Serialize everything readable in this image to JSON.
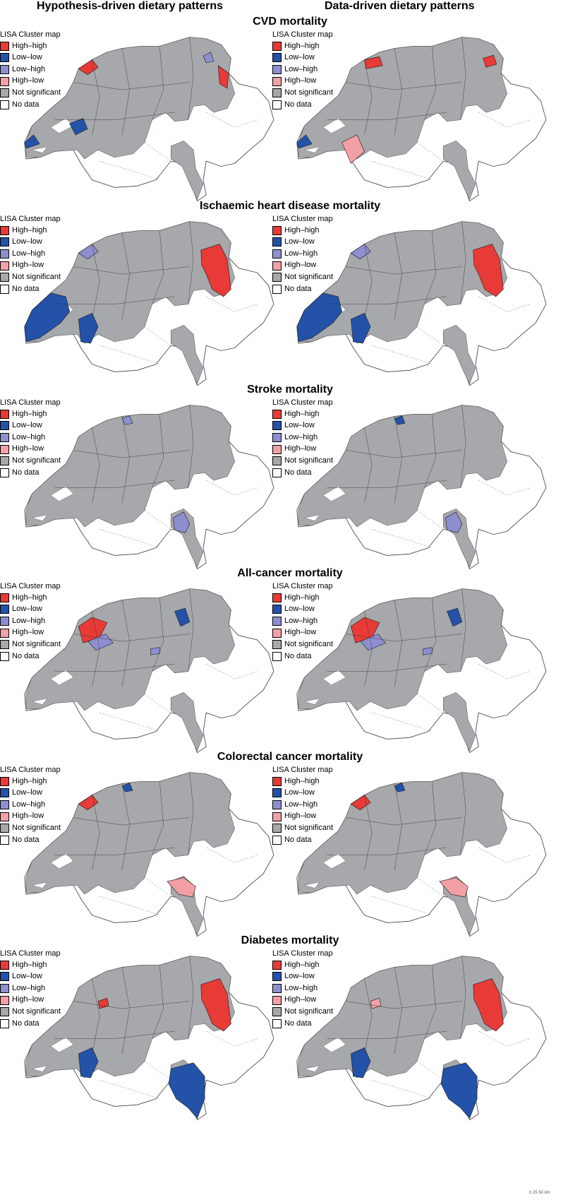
{
  "columns": [
    "Hypothesis-driven dietary patterns",
    "Data-driven dietary patterns"
  ],
  "legend": {
    "title": "LISA Cluster map",
    "items": [
      {
        "label": "High–high",
        "color": "#e83a37"
      },
      {
        "label": "Low–low",
        "color": "#2352a8"
      },
      {
        "label": "Low–high",
        "color": "#8d8fd0"
      },
      {
        "label": "High–low",
        "color": "#f2a0a6"
      },
      {
        "label": "Not significant",
        "color": "#a6a8ab"
      },
      {
        "label": "No data",
        "color": "#ffffff"
      }
    ]
  },
  "rows": [
    {
      "title": "CVD mortality",
      "maps": [
        {
          "hh": [
            "JU-north",
            "SG-east"
          ],
          "ll": [
            "VD-tip",
            "FR-south"
          ],
          "lh": [
            "TG-small"
          ],
          "hl": []
        },
        {
          "hh": [
            "BS-BL",
            "AR-AI"
          ],
          "ll": [
            "VD-tip"
          ],
          "lh": [],
          "hl": [
            "VS-west"
          ]
        }
      ]
    },
    {
      "title": "Ischaemic heart disease mortality",
      "maps": [
        {
          "hh": [
            "SG-region"
          ],
          "ll": [
            "VD-region",
            "VS-lower"
          ],
          "lh": [
            "JU-north"
          ],
          "hl": []
        },
        {
          "hh": [
            "SG-region"
          ],
          "ll": [
            "VD-region",
            "VS-lower"
          ],
          "lh": [
            "JU-north"
          ],
          "hl": []
        }
      ]
    },
    {
      "title": "Stroke mortality",
      "maps": [
        {
          "hh": [],
          "ll": [],
          "lh": [
            "BL-small",
            "TI-mid"
          ],
          "hl": []
        },
        {
          "hh": [],
          "ll": [
            "BL-small"
          ],
          "lh": [
            "TI-mid"
          ],
          "hl": []
        }
      ]
    },
    {
      "title": "All-cancer mortality",
      "maps": [
        {
          "hh": [
            "JU-BE"
          ],
          "ll": [
            "ZH-north"
          ],
          "lh": [
            "BE-lakes",
            "LU-small"
          ],
          "hl": []
        },
        {
          "hh": [
            "JU-BE"
          ],
          "ll": [
            "ZH-north"
          ],
          "lh": [
            "BE-lakes",
            "LU-small"
          ],
          "hl": []
        }
      ]
    },
    {
      "title": "Colorectal cancer mortality",
      "maps": [
        {
          "hh": [
            "JU-north"
          ],
          "ll": [
            "BL-small"
          ],
          "lh": [],
          "hl": [
            "TI-north"
          ]
        },
        {
          "hh": [
            "JU-north"
          ],
          "ll": [
            "BL-small"
          ],
          "lh": [],
          "hl": [
            "TI-north"
          ]
        }
      ]
    },
    {
      "title": "Diabetes mortality",
      "maps": [
        {
          "hh": [
            "SG-region",
            "BE-small"
          ],
          "ll": [
            "TI-south",
            "VS-lower"
          ],
          "lh": [],
          "hl": []
        },
        {
          "hh": [
            "SG-region"
          ],
          "ll": [
            "TI-south",
            "VS-lower"
          ],
          "lh": [],
          "hl": [
            "BE-small"
          ]
        }
      ]
    }
  ],
  "scale": "0   25   50 km"
}
